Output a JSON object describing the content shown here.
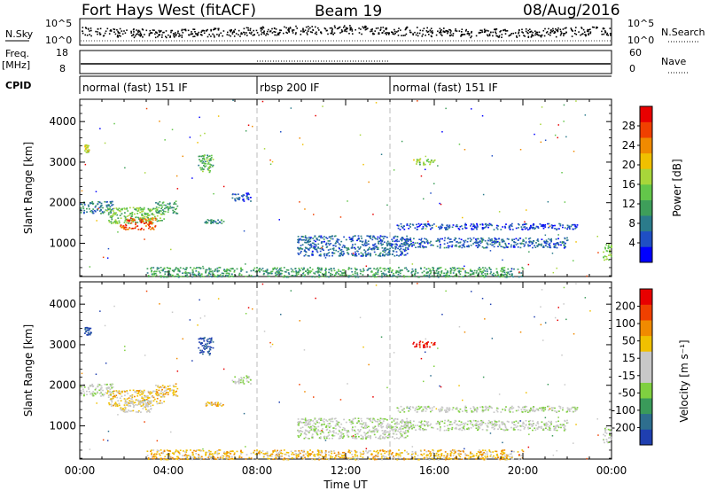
{
  "header": {
    "title": "Fort Hays West (fitACF)",
    "beam": "Beam 19",
    "date": "08/Aug/2016"
  },
  "noise_panel": {
    "left_label": "N.Sky",
    "left_ticks": [
      "10^5",
      "10^0"
    ],
    "right_ticks": [
      "10^5",
      "10^0"
    ],
    "right_label": "N.Search"
  },
  "freq_panel": {
    "left_label_1": "Freq.",
    "left_label_2": "[MHz]",
    "left_ticks": [
      "18",
      "8"
    ],
    "right_ticks": [
      "60",
      "0"
    ],
    "right_label": "Nave"
  },
  "cpid": {
    "label": "CPID",
    "segments": [
      {
        "label": "normal (fast) 151 IF",
        "start": 0,
        "end": 8
      },
      {
        "label": "rbsp 200 IF",
        "start": 8,
        "end": 14
      },
      {
        "label": "normal (fast) 151 IF",
        "start": 14,
        "end": 24
      }
    ]
  },
  "chart_data": [
    {
      "type": "heatmap",
      "name": "power",
      "ylabel": "Slant Range [km]",
      "xlim": [
        0,
        24
      ],
      "ylim": [
        180,
        4550
      ],
      "yticks": [
        "1000",
        "2000",
        "3000",
        "4000"
      ],
      "colorbar": {
        "label": "Power [dB]",
        "ticks": [
          "4",
          "8",
          "12",
          "16",
          "20",
          "24",
          "28"
        ],
        "colors": [
          "#0000ff",
          "#1f4fc4",
          "#2b7b8b",
          "#3e9e5a",
          "#63c64a",
          "#a8d63a",
          "#f0c000",
          "#f08a00",
          "#f04000",
          "#e80000"
        ]
      },
      "regions": [
        {
          "t0": 0.2,
          "t1": 0.4,
          "r0": 3250,
          "r1": 3450,
          "v": 0.6
        },
        {
          "t0": 0.0,
          "t1": 1.5,
          "r0": 1750,
          "r1": 2050,
          "v": 0.25
        },
        {
          "t0": 1.2,
          "t1": 3.8,
          "r0": 1500,
          "r1": 1900,
          "v": 0.45
        },
        {
          "t0": 1.8,
          "t1": 3.4,
          "r0": 1350,
          "r1": 1650,
          "v": 0.85
        },
        {
          "t0": 3.4,
          "t1": 4.4,
          "r0": 1750,
          "r1": 2050,
          "v": 0.35
        },
        {
          "t0": 5.3,
          "t1": 6.0,
          "r0": 2750,
          "r1": 3200,
          "v": 0.4
        },
        {
          "t0": 5.5,
          "t1": 6.5,
          "r0": 1500,
          "r1": 1600,
          "v": 0.3
        },
        {
          "t0": 6.8,
          "t1": 7.7,
          "r0": 2050,
          "r1": 2250,
          "v": 0.15
        },
        {
          "t0": 9.8,
          "t1": 14.8,
          "r0": 700,
          "r1": 1200,
          "v": 0.2
        },
        {
          "t0": 14.3,
          "t1": 22.5,
          "r0": 1350,
          "r1": 1500,
          "v": 0.15
        },
        {
          "t0": 14.6,
          "t1": 22.0,
          "r0": 900,
          "r1": 1150,
          "v": 0.2
        },
        {
          "t0": 15.0,
          "t1": 16.0,
          "r0": 2950,
          "r1": 3100,
          "v": 0.5
        },
        {
          "t0": 23.6,
          "t1": 24.0,
          "r0": 600,
          "r1": 1000,
          "v": 0.5
        },
        {
          "t0": 3.0,
          "t1": 20.0,
          "r0": 180,
          "r1": 420,
          "v": 0.35
        }
      ]
    },
    {
      "type": "heatmap",
      "name": "velocity",
      "ylabel": "Slant Range [km]",
      "xlabel": "Time UT",
      "xlim": [
        0,
        24
      ],
      "ylim": [
        180,
        4550
      ],
      "xticks": [
        "00:00",
        "04:00",
        "08:00",
        "12:00",
        "16:00",
        "20:00",
        "00:00"
      ],
      "yticks": [
        "1000",
        "2000",
        "3000",
        "4000"
      ],
      "colorbar": {
        "label": "Velocity [m s⁻¹]",
        "ticks": [
          "200",
          "100",
          "50",
          "15",
          "-15",
          "-50",
          "-100",
          "-200"
        ],
        "colors": [
          "#1f3fb0",
          "#2e6e8e",
          "#3a9a5a",
          "#7fd040",
          "#c8c8c8",
          "#c8c8c8",
          "#f0c000",
          "#f08a00",
          "#f04000",
          "#e80000"
        ]
      },
      "regions": [
        {
          "t0": 0.2,
          "t1": 0.5,
          "r0": 3250,
          "r1": 3450,
          "v": 0.05
        },
        {
          "t0": 0.0,
          "t1": 1.5,
          "r0": 1750,
          "r1": 2050,
          "v": 0.45
        },
        {
          "t0": 1.2,
          "t1": 3.8,
          "r0": 1500,
          "r1": 1900,
          "v": 0.6
        },
        {
          "t0": 1.8,
          "t1": 3.2,
          "r0": 1350,
          "r1": 1650,
          "v": 0.55
        },
        {
          "t0": 3.4,
          "t1": 4.4,
          "r0": 1750,
          "r1": 2050,
          "v": 0.65
        },
        {
          "t0": 5.3,
          "t1": 6.0,
          "r0": 2750,
          "r1": 3200,
          "v": 0.05
        },
        {
          "t0": 5.5,
          "t1": 6.5,
          "r0": 1500,
          "r1": 1600,
          "v": 0.65
        },
        {
          "t0": 6.8,
          "t1": 7.7,
          "r0": 2050,
          "r1": 2250,
          "v": 0.45
        },
        {
          "t0": 9.8,
          "t1": 14.8,
          "r0": 700,
          "r1": 1200,
          "v": 0.45
        },
        {
          "t0": 14.3,
          "t1": 22.5,
          "r0": 1350,
          "r1": 1500,
          "v": 0.45
        },
        {
          "t0": 14.6,
          "t1": 22.0,
          "r0": 900,
          "r1": 1150,
          "v": 0.45
        },
        {
          "t0": 15.0,
          "t1": 16.0,
          "r0": 2950,
          "r1": 3100,
          "v": 0.97
        },
        {
          "t0": 23.6,
          "t1": 24.0,
          "r0": 600,
          "r1": 1000,
          "v": 0.45
        },
        {
          "t0": 3.0,
          "t1": 20.0,
          "r0": 180,
          "r1": 420,
          "v": 0.65
        }
      ]
    }
  ]
}
